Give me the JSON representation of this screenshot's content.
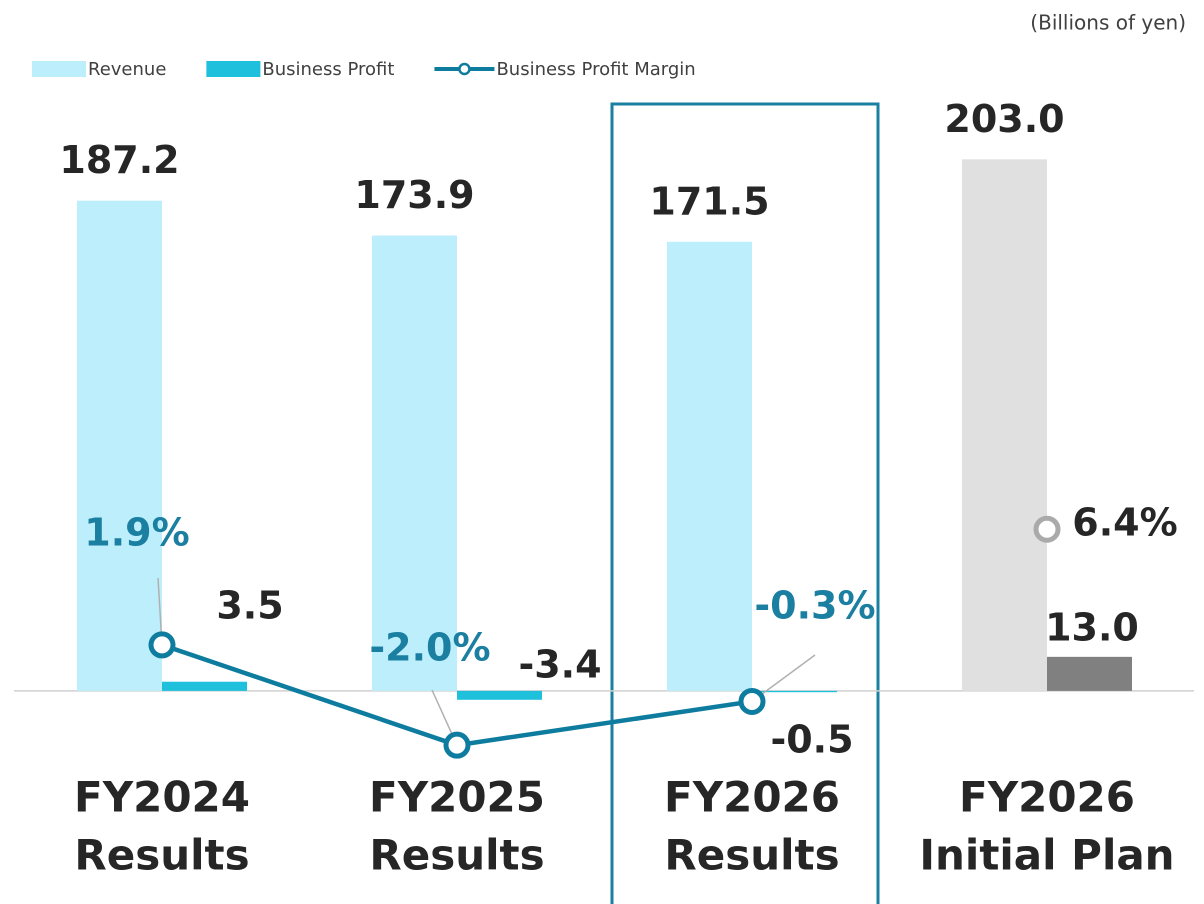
{
  "chart_data": {
    "type": "bar",
    "unit": "(Billions of yen)",
    "categories": [
      [
        "FY2024",
        "Results"
      ],
      [
        "FY2025",
        "Results"
      ],
      [
        "FY2026",
        "Results"
      ],
      [
        "FY2026",
        "Initial Plan"
      ]
    ],
    "series": [
      {
        "name": "Revenue",
        "color": "#bdeefc",
        "colors": [
          "#bdeefc",
          "#bdeefc",
          "#bdeefc",
          "#e0e0e0"
        ],
        "values": [
          187.2,
          173.9,
          171.5,
          203.0
        ],
        "value_labels": [
          "187.2",
          "173.9",
          "171.5",
          "203.0"
        ]
      },
      {
        "name": "Business Profit",
        "color": "#1fc0dc",
        "colors": [
          "#1fc0dc",
          "#1fc0dc",
          "#1fc0dc",
          "#808080"
        ],
        "values": [
          3.5,
          -3.4,
          -0.5,
          13.0
        ],
        "value_labels": [
          "3.5",
          "-3.4",
          "-0.5",
          "13.0"
        ]
      },
      {
        "name": "Business Profit Margin",
        "type": "line",
        "axis": "y2",
        "color": "#0e7c9f",
        "colors": [
          "#0e7c9f",
          "#0e7c9f",
          "#0e7c9f",
          "#aaaaaa"
        ],
        "values": [
          1.9,
          -2.0,
          -0.3,
          6.4
        ],
        "value_labels": [
          "1.9%",
          "-2.0%",
          "-0.3%",
          "6.4%"
        ]
      }
    ],
    "ylim": [
      -60,
      210
    ],
    "y2lim": [
      -6,
      21.5
    ],
    "grid": false
  }
}
